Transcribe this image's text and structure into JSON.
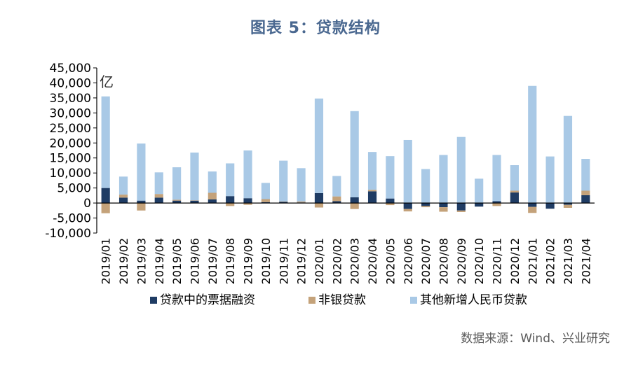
{
  "title": "图表 5：贷款结构",
  "source": "数据来源：Wind、兴业研究",
  "unit_label": "亿",
  "colors": {
    "bill": "#1f3c64",
    "nonbank": "#c4a27a",
    "other": "#a9c9e6",
    "axis": "#000000"
  },
  "chart_data": {
    "type": "bar",
    "stacked": true,
    "ylim": [
      -10000,
      45000
    ],
    "yticks": [
      -10000,
      -5000,
      0,
      5000,
      10000,
      15000,
      20000,
      25000,
      30000,
      35000,
      40000,
      45000
    ],
    "ytick_labels": [
      "-10,000",
      "-5,000",
      "0",
      "5,000",
      "10,000",
      "15,000",
      "20,000",
      "25,000",
      "30,000",
      "35,000",
      "40,000",
      "45,000"
    ],
    "categories": [
      "2019/01",
      "2019/02",
      "2019/03",
      "2019/04",
      "2019/05",
      "2019/06",
      "2019/07",
      "2019/08",
      "2019/09",
      "2019/10",
      "2019/11",
      "2019/12",
      "2020/01",
      "2020/02",
      "2020/03",
      "2020/04",
      "2020/05",
      "2020/06",
      "2020/07",
      "2020/08",
      "2020/09",
      "2020/10",
      "2020/11",
      "2020/12",
      "2021/01",
      "2021/02",
      "2021/03",
      "2021/04"
    ],
    "legend_position": "bottom",
    "series": [
      {
        "name": "贷款中的票据融资",
        "color_key": "bill",
        "values": [
          5000,
          1800,
          800,
          1800,
          800,
          800,
          1200,
          2300,
          1600,
          300,
          400,
          200,
          3300,
          600,
          1900,
          3900,
          1500,
          -2000,
          -1000,
          -1400,
          -2500,
          -1200,
          600,
          3500,
          -1300,
          -1900,
          -600,
          2600
        ]
      },
      {
        "name": "非银贷款",
        "color_key": "nonbank",
        "values": [
          -3400,
          1000,
          -2500,
          1200,
          300,
          100,
          2200,
          -1000,
          -600,
          1000,
          100,
          300,
          -1500,
          1600,
          -2000,
          500,
          -700,
          -800,
          -400,
          -1500,
          -500,
          0,
          -1000,
          600,
          -2000,
          0,
          -1000,
          1500
        ]
      },
      {
        "name": "其他新增人民币贷款",
        "color_key": "other",
        "values": [
          30500,
          6000,
          19000,
          7200,
          10800,
          15900,
          7100,
          10900,
          15900,
          5400,
          13600,
          11100,
          31500,
          6800,
          28700,
          12600,
          14100,
          21000,
          11300,
          16000,
          22000,
          8100,
          15400,
          8500,
          39000,
          15500,
          29000,
          10600
        ]
      }
    ]
  }
}
